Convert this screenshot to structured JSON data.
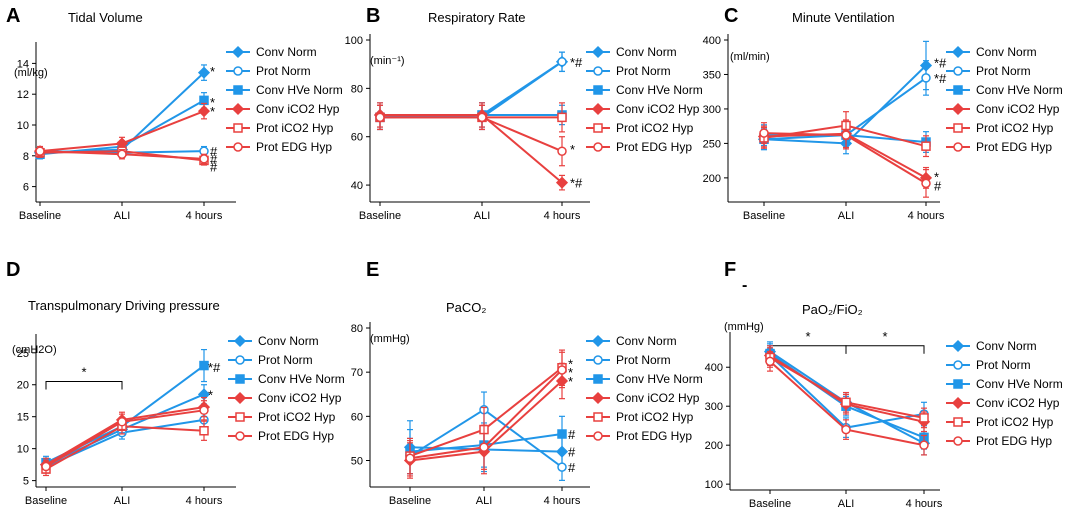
{
  "colors": {
    "blue": "#2196e8",
    "red": "#e8403f",
    "axis": "#000000"
  },
  "chart_data": [
    {
      "type": "line",
      "letter": "A",
      "title": "Tidal Volume",
      "unit": "(ml/kg)",
      "categories": [
        "Baseline",
        "ALI",
        "4 hours"
      ],
      "ylim": [
        5,
        15
      ],
      "yticks": [
        6,
        8,
        10,
        12,
        14
      ],
      "series": [
        {
          "name": "Conv Norm",
          "color": "blue",
          "marker": "diamond",
          "values": [
            8.2,
            8.4,
            13.4
          ],
          "errors": [
            0.3,
            0.3,
            0.5
          ]
        },
        {
          "name": "Prot Norm",
          "color": "blue",
          "marker": "circle-open",
          "values": [
            8.3,
            8.2,
            8.3
          ],
          "errors": [
            0.3,
            0.3,
            0.3
          ]
        },
        {
          "name": "Conv HVe Norm",
          "color": "blue",
          "marker": "square",
          "values": [
            8.1,
            8.6,
            11.6
          ],
          "errors": [
            0.3,
            0.3,
            0.5
          ]
        },
        {
          "name": "Conv iCO2 Hyp",
          "color": "red",
          "marker": "diamond",
          "values": [
            8.3,
            8.8,
            10.9
          ],
          "errors": [
            0.3,
            0.4,
            0.5
          ]
        },
        {
          "name": "Prot iCO2 Hyp",
          "color": "red",
          "marker": "square-open",
          "values": [
            8.2,
            8.3,
            7.7
          ],
          "errors": [
            0.3,
            0.3,
            0.3
          ]
        },
        {
          "name": "Prot EDG Hyp",
          "color": "red",
          "marker": "circle-open",
          "values": [
            8.3,
            8.1,
            7.8
          ],
          "errors": [
            0.3,
            0.3,
            0.3
          ]
        }
      ],
      "annotations": [
        {
          "text": "*",
          "value": 13.5
        },
        {
          "text": "*",
          "value": 11.5
        },
        {
          "text": "*",
          "value": 10.9
        },
        {
          "text": "#",
          "value": 8.3
        },
        {
          "text": "#",
          "value": 7.8
        },
        {
          "text": "#",
          "value": 7.3
        }
      ]
    },
    {
      "type": "line",
      "letter": "B",
      "title": "Respiratory Rate",
      "unit": "(min⁻¹)",
      "categories": [
        "Baseline",
        "ALI",
        "4 hours"
      ],
      "ylim": [
        33,
        100
      ],
      "yticks": [
        40,
        60,
        80,
        100
      ],
      "series": [
        {
          "name": "Conv Norm",
          "color": "blue",
          "marker": "diamond",
          "values": [
            69,
            68,
            91
          ],
          "errors": [
            5,
            5,
            4
          ]
        },
        {
          "name": "Prot Norm",
          "color": "blue",
          "marker": "circle-open",
          "values": [
            68,
            69,
            91
          ],
          "errors": [
            5,
            5,
            4
          ]
        },
        {
          "name": "Conv HVe Norm",
          "color": "blue",
          "marker": "square",
          "values": [
            68,
            69,
            69
          ],
          "errors": [
            5,
            5,
            4
          ]
        },
        {
          "name": "Conv iCO2 Hyp",
          "color": "red",
          "marker": "diamond",
          "values": [
            69,
            69,
            41
          ],
          "errors": [
            5,
            5,
            3
          ]
        },
        {
          "name": "Prot iCO2 Hyp",
          "color": "red",
          "marker": "square-open",
          "values": [
            68,
            68,
            68
          ],
          "errors": [
            5,
            5,
            6
          ]
        },
        {
          "name": "Prot EDG Hyp",
          "color": "red",
          "marker": "circle-open",
          "values": [
            68,
            68,
            54
          ],
          "errors": [
            5,
            5,
            6
          ]
        }
      ],
      "annotations": [
        {
          "text": "*#",
          "value": 91
        },
        {
          "text": "*",
          "value": 55
        },
        {
          "text": "*#",
          "value": 41
        }
      ]
    },
    {
      "type": "line",
      "letter": "C",
      "title": "Minute Ventilation",
      "unit": "(ml/min)",
      "categories": [
        "Baseline",
        "ALI",
        "4 hours"
      ],
      "ylim": [
        165,
        400
      ],
      "yticks": [
        200,
        250,
        300,
        350,
        400
      ],
      "series": [
        {
          "name": "Conv Norm",
          "color": "blue",
          "marker": "diamond",
          "values": [
            256,
            250,
            363
          ],
          "errors": [
            15,
            15,
            35
          ]
        },
        {
          "name": "Prot Norm",
          "color": "blue",
          "marker": "circle-open",
          "values": [
            262,
            262,
            345
          ],
          "errors": [
            15,
            15,
            25
          ]
        },
        {
          "name": "Conv HVe Norm",
          "color": "blue",
          "marker": "square",
          "values": [
            256,
            262,
            252
          ],
          "errors": [
            15,
            15,
            15
          ]
        },
        {
          "name": "Conv iCO2 Hyp",
          "color": "red",
          "marker": "diamond",
          "values": [
            260,
            264,
            200
          ],
          "errors": [
            15,
            20,
            15
          ]
        },
        {
          "name": "Prot iCO2 Hyp",
          "color": "red",
          "marker": "square-open",
          "values": [
            258,
            276,
            246
          ],
          "errors": [
            15,
            20,
            15
          ]
        },
        {
          "name": "Prot EDG Hyp",
          "color": "red",
          "marker": "circle-open",
          "values": [
            265,
            262,
            192
          ],
          "errors": [
            15,
            20,
            20
          ]
        }
      ],
      "annotations": [
        {
          "text": "*#",
          "value": 367
        },
        {
          "text": "*#",
          "value": 345
        },
        {
          "text": "*",
          "value": 202
        },
        {
          "text": "#",
          "value": 189
        }
      ]
    },
    {
      "type": "line",
      "letter": "D",
      "title": "Transpulmonary Driving pressure",
      "unit": "(cmH2O)",
      "categories": [
        "Baseline",
        "ALI",
        "4 hours"
      ],
      "ylim": [
        4,
        27
      ],
      "yticks": [
        5,
        10,
        15,
        20,
        25
      ],
      "bracket": {
        "from": 0,
        "to": 1,
        "value": 20.5,
        "label": "*"
      },
      "series": [
        {
          "name": "Conv Norm",
          "color": "blue",
          "marker": "diamond",
          "values": [
            7.5,
            13,
            18.5
          ],
          "errors": [
            1,
            1,
            1.5
          ]
        },
        {
          "name": "Prot Norm",
          "color": "blue",
          "marker": "circle-open",
          "values": [
            7.2,
            12.5,
            14.5
          ],
          "errors": [
            1,
            1,
            1.5
          ]
        },
        {
          "name": "Conv HVe Norm",
          "color": "blue",
          "marker": "square",
          "values": [
            7.8,
            13.5,
            23
          ],
          "errors": [
            1,
            1,
            2.5
          ]
        },
        {
          "name": "Conv iCO2 Hyp",
          "color": "red",
          "marker": "diamond",
          "values": [
            7.5,
            14.5,
            16.5
          ],
          "errors": [
            1,
            1.2,
            1.5
          ]
        },
        {
          "name": "Prot iCO2 Hyp",
          "color": "red",
          "marker": "square-open",
          "values": [
            6.8,
            13.5,
            12.8
          ],
          "errors": [
            1,
            1.2,
            1.5
          ]
        },
        {
          "name": "Prot EDG Hyp",
          "color": "red",
          "marker": "circle-open",
          "values": [
            7.2,
            14.2,
            16
          ],
          "errors": [
            1,
            1.2,
            1.5
          ]
        }
      ],
      "annotations": [
        {
          "text": "*#",
          "value": 22.8
        },
        {
          "text": "*",
          "value": 18.5
        }
      ]
    },
    {
      "type": "line",
      "letter": "E",
      "title": "PaCO₂",
      "unit": "(mmHg)",
      "categories": [
        "Baseline",
        "ALI",
        "4 hours"
      ],
      "ylim": [
        44,
        80
      ],
      "yticks": [
        50,
        60,
        70,
        80
      ],
      "series": [
        {
          "name": "Conv Norm",
          "color": "blue",
          "marker": "diamond",
          "values": [
            53,
            52.5,
            52
          ],
          "errors": [
            6,
            5,
            4
          ]
        },
        {
          "name": "Prot Norm",
          "color": "blue",
          "marker": "circle-open",
          "values": [
            51,
            61.5,
            48.5
          ],
          "errors": [
            4,
            4,
            3
          ]
        },
        {
          "name": "Conv HVe Norm",
          "color": "blue",
          "marker": "square",
          "values": [
            52,
            53.5,
            56
          ],
          "errors": [
            5,
            5,
            4
          ]
        },
        {
          "name": "Conv iCO2 Hyp",
          "color": "red",
          "marker": "diamond",
          "values": [
            50,
            52,
            68
          ],
          "errors": [
            4,
            5,
            4
          ]
        },
        {
          "name": "Prot iCO2 Hyp",
          "color": "red",
          "marker": "square-open",
          "values": [
            51,
            57,
            71
          ],
          "errors": [
            4,
            5,
            4
          ]
        },
        {
          "name": "Prot EDG Hyp",
          "color": "red",
          "marker": "circle-open",
          "values": [
            50.5,
            53,
            70.5
          ],
          "errors": [
            4,
            5,
            4
          ]
        }
      ],
      "annotations": [
        {
          "text": "*",
          "value": 72
        },
        {
          "text": "*",
          "value": 70
        },
        {
          "text": "*",
          "value": 68
        },
        {
          "text": "#",
          "value": 56
        },
        {
          "text": "#",
          "value": 52
        },
        {
          "text": "#",
          "value": 48.5
        }
      ]
    },
    {
      "type": "line",
      "letter": "F",
      "title": "PaO₂/FiO₂",
      "unit": "(mmHg)",
      "marker_dot": "-",
      "categories": [
        "Baseline",
        "ALI",
        "4 hours"
      ],
      "ylim": [
        85,
        475
      ],
      "yticks": [
        100,
        200,
        300,
        400
      ],
      "brackets": [
        {
          "from": 0,
          "to": 1,
          "value": 455,
          "label": "*"
        },
        {
          "from": 1,
          "to": 2,
          "value": 455,
          "label": "*"
        }
      ],
      "series": [
        {
          "name": "Conv Norm",
          "color": "blue",
          "marker": "diamond",
          "values": [
            440,
            310,
            205
          ],
          "errors": [
            25,
            25,
            30
          ]
        },
        {
          "name": "Prot Norm",
          "color": "blue",
          "marker": "circle-open",
          "values": [
            430,
            245,
            280
          ],
          "errors": [
            25,
            25,
            30
          ]
        },
        {
          "name": "Conv HVe Norm",
          "color": "blue",
          "marker": "square",
          "values": [
            435,
            300,
            220
          ],
          "errors": [
            25,
            25,
            30
          ]
        },
        {
          "name": "Conv iCO2 Hyp",
          "color": "red",
          "marker": "diamond",
          "values": [
            430,
            305,
            260
          ],
          "errors": [
            25,
            25,
            25
          ]
        },
        {
          "name": "Prot iCO2 Hyp",
          "color": "red",
          "marker": "square-open",
          "values": [
            425,
            310,
            270
          ],
          "errors": [
            25,
            25,
            25
          ]
        },
        {
          "name": "Prot EDG Hyp",
          "color": "red",
          "marker": "circle-open",
          "values": [
            415,
            240,
            200
          ],
          "errors": [
            25,
            25,
            25
          ]
        }
      ],
      "annotations": []
    }
  ]
}
